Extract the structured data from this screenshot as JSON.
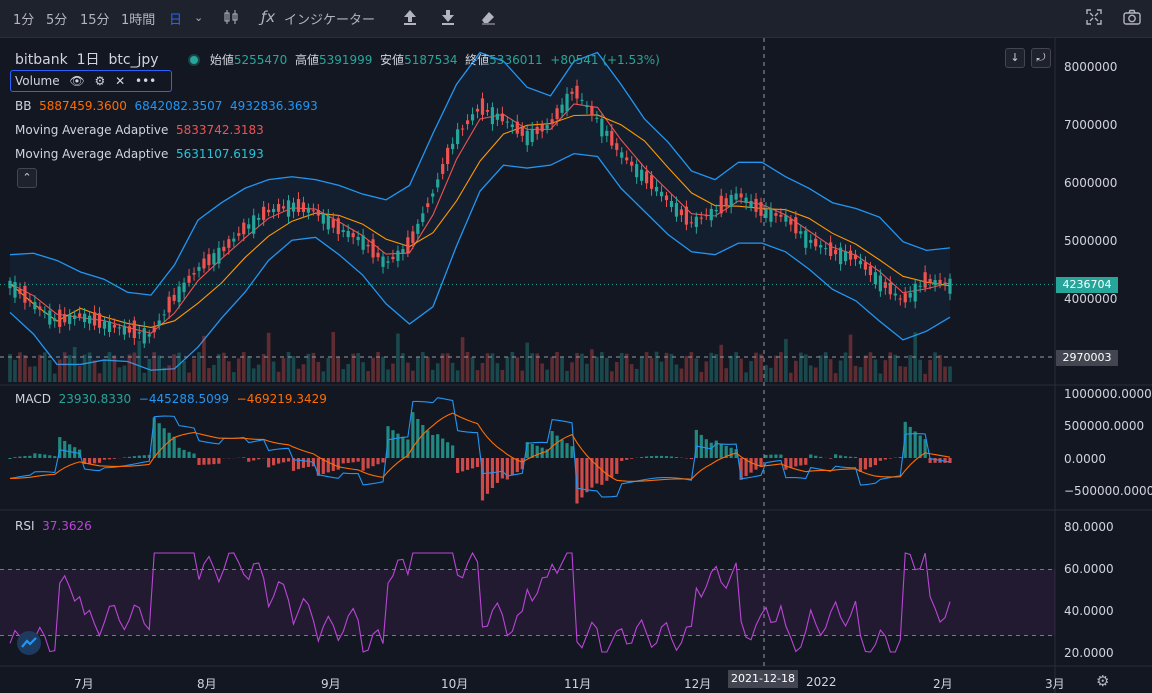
{
  "toolbar": {
    "intervals": [
      "1分",
      "5分",
      "15分",
      "1時間",
      "日"
    ],
    "active_interval": "日",
    "indicators_label": "インジケーター"
  },
  "legend": {
    "exchange": "bitbank",
    "interval": "1日",
    "symbol": "btc_jpy",
    "open_label": "始値",
    "open": "5255470",
    "high_label": "高値",
    "high": "5391999",
    "low_label": "安値",
    "low": "5187534",
    "close_label": "終値",
    "close": "5336011",
    "change": "+80541 (+1.53%)",
    "volume_label": "Volume",
    "bb_label": "BB",
    "bb_mid": "5887459.3600",
    "bb_upper": "6842082.3507",
    "bb_lower": "4932836.3693",
    "ma1_label": "Moving Average Adaptive",
    "ma1_value": "5833742.3183",
    "ma2_label": "Moving Average Adaptive",
    "ma2_value": "5631107.6193"
  },
  "price_axis": {
    "ticks": [
      "8000000",
      "7000000",
      "6000000",
      "5000000",
      "4000000"
    ],
    "current_price": "4236704",
    "crosshair_price": "2970003"
  },
  "macd": {
    "label": "MACD",
    "hist": "23930.8330",
    "macd": "−445288.5099",
    "signal": "−469219.3429",
    "ticks": [
      "1000000.0000",
      "500000.0000",
      "0.0000",
      "−500000.0000"
    ]
  },
  "rsi": {
    "label": "RSI",
    "value": "37.3626",
    "ticks": [
      "80.0000",
      "60.0000",
      "40.0000",
      "20.0000"
    ]
  },
  "time_axis": {
    "labels": [
      "7月",
      "8月",
      "9月",
      "10月",
      "11月",
      "12月",
      "2022",
      "2月",
      "3月"
    ],
    "crosshair_date": "2021-12-18"
  },
  "colors": {
    "up": "#26a69a",
    "down": "#ef5350",
    "bb": "#2196f3",
    "ma_red": "#ef5350",
    "ma_orange": "#ff9800",
    "macd_line": "#2196f3",
    "signal_line": "#ff6d00",
    "rsi_line": "#ba45d6"
  },
  "chart_data": {
    "type": "candlestick",
    "series": [
      {
        "name": "btc_jpy close (approx)",
        "values": [
          4250000,
          3900000,
          3600000,
          3700000,
          3550000,
          3450000,
          3350000,
          4000000,
          4500000,
          4800000,
          5200000,
          5500000,
          5600000,
          5500000,
          5200000,
          5000000,
          4600000,
          4900000,
          5800000,
          6800000,
          7300000,
          7100000,
          6800000,
          7000000,
          7600000,
          7100000,
          6500000,
          6100000,
          5700000,
          5300000,
          5500000,
          5800000,
          5500000,
          5400000,
          5000000,
          4800000,
          4700000,
          4300000,
          3950000,
          4300000,
          4236704
        ]
      }
    ],
    "ylim": [
      2970003,
      8200000
    ]
  }
}
